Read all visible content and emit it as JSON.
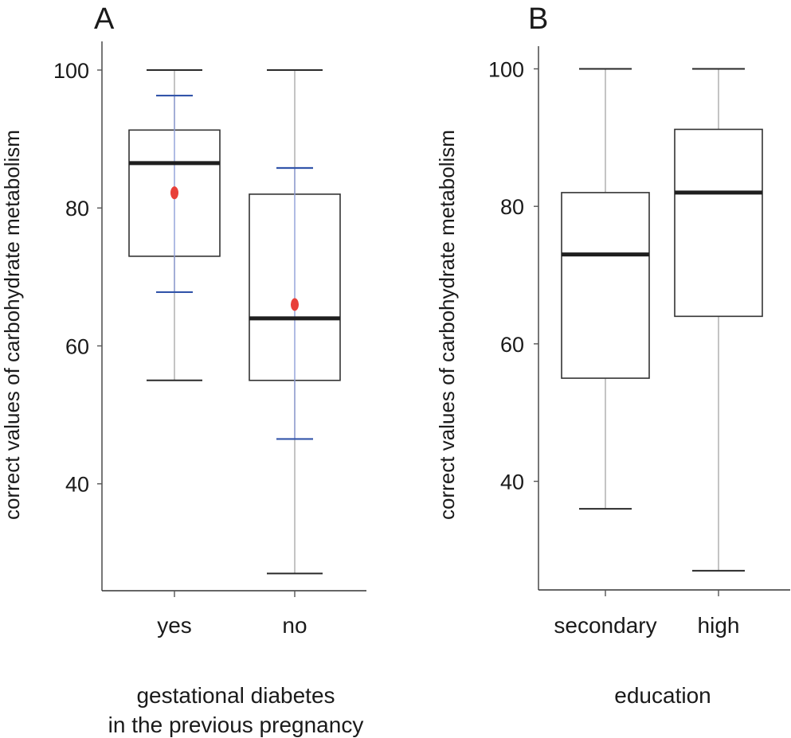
{
  "chart_data": [
    {
      "panel_label": "A",
      "type": "box",
      "xlabel_lines": [
        "gestational diabetes",
        "in the previous pregnancy"
      ],
      "ylabel": "correct values of carbohydrate metabolism",
      "y_ticks": [
        40,
        60,
        80,
        100
      ],
      "ylim": [
        24.5,
        103
      ],
      "categories": [
        "yes",
        "no"
      ],
      "boxes": [
        {
          "category": "yes",
          "min": 55,
          "q1": 73,
          "median": 86.5,
          "q3": 91.3,
          "max": 100,
          "mean": 82.2,
          "mean_minus_sd": 67.8,
          "mean_plus_sd": 96.3
        },
        {
          "category": "no",
          "min": 27,
          "q1": 55,
          "median": 64,
          "q3": 82,
          "max": 100,
          "mean": 66,
          "mean_minus_sd": 46.5,
          "mean_plus_sd": 85.8
        }
      ],
      "colors": {
        "mean_marker": "#e8403a",
        "sd_bar": "#3355aa",
        "sd_line": "#8f9fd8",
        "box": "#333333",
        "median": "#1f1f1f"
      }
    },
    {
      "panel_label": "B",
      "type": "box",
      "xlabel_lines": [
        "education"
      ],
      "ylabel": "correct values of carbohydrate metabolism",
      "y_ticks": [
        40,
        60,
        80,
        100
      ],
      "ylim": [
        24.2,
        103.3
      ],
      "categories": [
        "secondary",
        "high"
      ],
      "boxes": [
        {
          "category": "secondary",
          "min": 36,
          "q1": 55,
          "median": 73,
          "q3": 82,
          "max": 100
        },
        {
          "category": "high",
          "min": 27,
          "q1": 64,
          "median": 82,
          "q3": 91.2,
          "max": 100
        }
      ],
      "colors": {
        "box": "#333333",
        "median": "#1f1f1f"
      }
    }
  ]
}
